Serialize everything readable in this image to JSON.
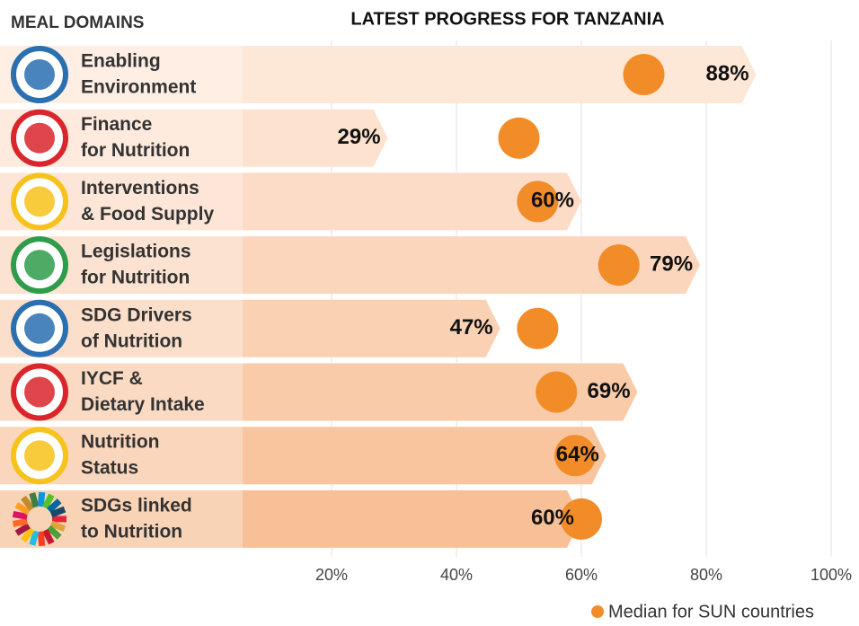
{
  "chart_data": {
    "type": "arrow-bar",
    "title": "LATEST PROGRESS FOR TANZANIA",
    "header": "MEAL DOMAINS",
    "categories": [
      [
        "Enabling",
        "Environment"
      ],
      [
        "Finance",
        "for Nutrition"
      ],
      [
        "Interventions",
        "& Food Supply"
      ],
      [
        "Legislations",
        "for Nutrition"
      ],
      [
        "SDG Drivers",
        "of Nutrition"
      ],
      [
        "IYCF &",
        "Dietary Intake"
      ],
      [
        "Nutrition",
        "Status"
      ],
      [
        "SDGs linked",
        "to Nutrition"
      ]
    ],
    "values": [
      88,
      29,
      60,
      79,
      47,
      69,
      64,
      60
    ],
    "value_labels": [
      "88%",
      "29%",
      "60%",
      "79%",
      "47%",
      "69%",
      "64%",
      "60%"
    ],
    "colors": [
      "#fde7d7",
      "#fde2cf",
      "#fcdcc6",
      "#fbd6bc",
      "#fad1b3",
      "#f9cba9",
      "#f8c59f",
      "#f7c096"
    ],
    "series": [
      {
        "name": "Median for SUN countries",
        "color": "#f28c28",
        "values": [
          70,
          50,
          53,
          66,
          53,
          56,
          59,
          60
        ]
      }
    ],
    "xlim": [
      0,
      100
    ],
    "xticks": [
      {
        "value": 20,
        "label": "20%"
      },
      {
        "value": 40,
        "label": "40%"
      },
      {
        "value": 60,
        "label": "60%"
      },
      {
        "value": 80,
        "label": "80%"
      },
      {
        "value": 100,
        "label": "100%"
      }
    ],
    "grid": true
  }
}
